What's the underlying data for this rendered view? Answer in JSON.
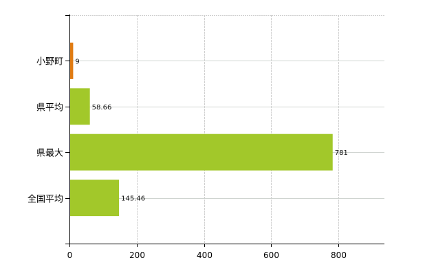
{
  "chart_data": {
    "type": "bar",
    "orientation": "horizontal",
    "categories": [
      "小野町",
      "県平均",
      "県最大",
      "全国平均"
    ],
    "values": [
      9,
      58.66,
      781,
      145.46
    ],
    "data_labels": [
      "9",
      "58.66",
      "781",
      "145.46"
    ],
    "bar_colors": [
      "#e07b12",
      "#a2c82a",
      "#a2c82a",
      "#a2c82a"
    ],
    "xlim": [
      0,
      937
    ],
    "x_ticks": [
      0,
      200,
      400,
      600,
      800
    ],
    "x_tick_labels": [
      "0",
      "200",
      "400",
      "600",
      "800"
    ],
    "grid": true,
    "title": "",
    "xlabel": "",
    "ylabel": ""
  }
}
